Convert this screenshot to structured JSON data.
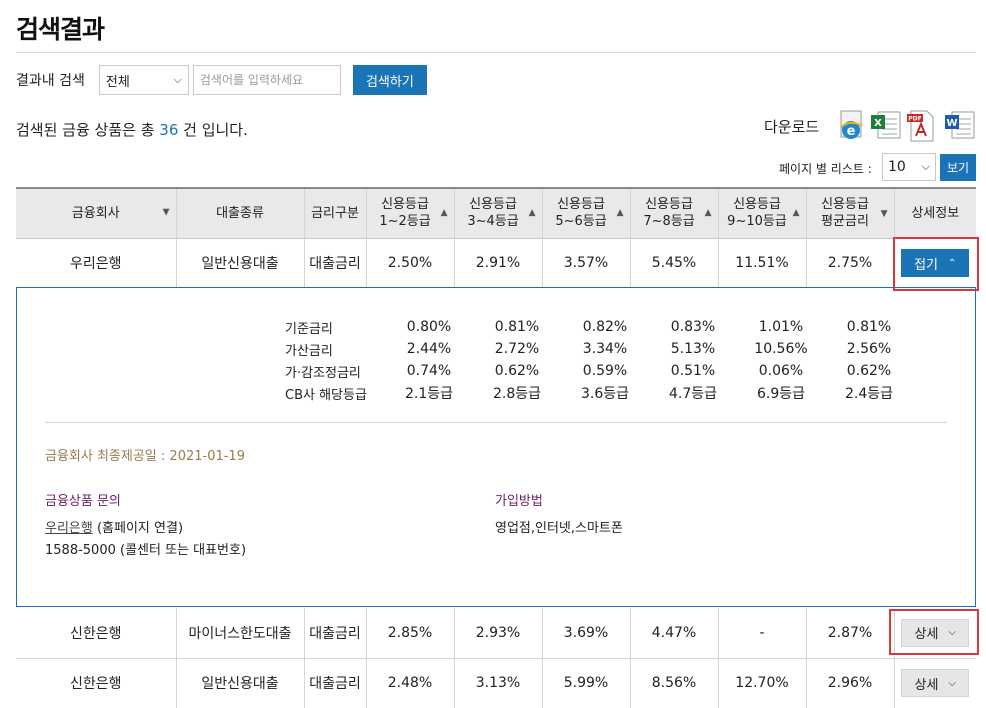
{
  "page_title": "검색결과",
  "search": {
    "label": "결과내 검색",
    "scope_value": "전체",
    "placeholder": "검색어를 입력하세요",
    "button": "검색하기"
  },
  "summary": {
    "prefix": "검색된 금융 상품은 총 ",
    "count": "36",
    "suffix": " 건 입니다."
  },
  "download": {
    "label": "다운로드",
    "formats": [
      "ie-icon",
      "excel-icon",
      "pdf-icon",
      "word-icon"
    ]
  },
  "paging": {
    "label": "페이지 별 리스트 :",
    "value": "10",
    "button": "보기"
  },
  "table": {
    "headers": [
      {
        "line1": "금융회사",
        "line2": ""
      },
      {
        "line1": "대출종류",
        "line2": ""
      },
      {
        "line1": "금리구분",
        "line2": ""
      },
      {
        "line1": "신용등급",
        "line2": "1~2등급"
      },
      {
        "line1": "신용등급",
        "line2": "3~4등급"
      },
      {
        "line1": "신용등급",
        "line2": "5~6등급"
      },
      {
        "line1": "신용등급",
        "line2": "7~8등급"
      },
      {
        "line1": "신용등급",
        "line2": "9~10등급"
      },
      {
        "line1": "신용등급",
        "line2": "평균금리"
      },
      {
        "line1": "상세정보",
        "line2": ""
      }
    ],
    "rows": [
      {
        "company": "우리은행",
        "loan_type": "일반신용대출",
        "rate_type": "대출금리",
        "g12": "2.50%",
        "g34": "2.91%",
        "g56": "3.57%",
        "g78": "5.45%",
        "g910": "11.51%",
        "avg": "2.75%",
        "action": "접기"
      },
      {
        "company": "신한은행",
        "loan_type": "마이너스한도대출",
        "rate_type": "대출금리",
        "g12": "2.85%",
        "g34": "2.93%",
        "g56": "3.69%",
        "g78": "4.47%",
        "g910": "-",
        "avg": "2.87%",
        "action": "상세"
      },
      {
        "company": "신한은행",
        "loan_type": "일반신용대출",
        "rate_type": "대출금리",
        "g12": "2.48%",
        "g34": "3.13%",
        "g56": "5.99%",
        "g78": "8.56%",
        "g910": "12.70%",
        "avg": "2.96%",
        "action": "상세"
      }
    ]
  },
  "detail": {
    "rates": [
      {
        "label": "기준금리",
        "values": [
          "0.80%",
          "0.81%",
          "0.82%",
          "0.83%",
          "1.01%",
          "0.81%"
        ]
      },
      {
        "label": "가산금리",
        "values": [
          "2.44%",
          "2.72%",
          "3.34%",
          "5.13%",
          "10.56%",
          "2.56%"
        ]
      },
      {
        "label": "가·감조정금리",
        "values": [
          "0.74%",
          "0.62%",
          "0.59%",
          "0.51%",
          "0.06%",
          "0.62%"
        ]
      },
      {
        "label": "CB사 해당등급",
        "values": [
          "2.1등급",
          "2.8등급",
          "3.6등급",
          "4.7등급",
          "6.9등급",
          "2.4등급"
        ]
      }
    ],
    "disclosure_date": "금융회사 최종제공일 : 2021-01-19",
    "inquiry_title": "금융상품 문의",
    "inquiry_link": "우리은행",
    "inquiry_link_suffix": " (홈페이지 연결)",
    "inquiry_phone": "1588-5000 (콜센터 또는 대표번호)",
    "join_title": "가입방법",
    "join_text": "영업점,인터넷,스마트폰"
  },
  "colors": {
    "accent": "#1b74b5",
    "highlight": "#d9363e",
    "date_text": "#9c7a4c",
    "section_title": "#6b1f6b"
  }
}
